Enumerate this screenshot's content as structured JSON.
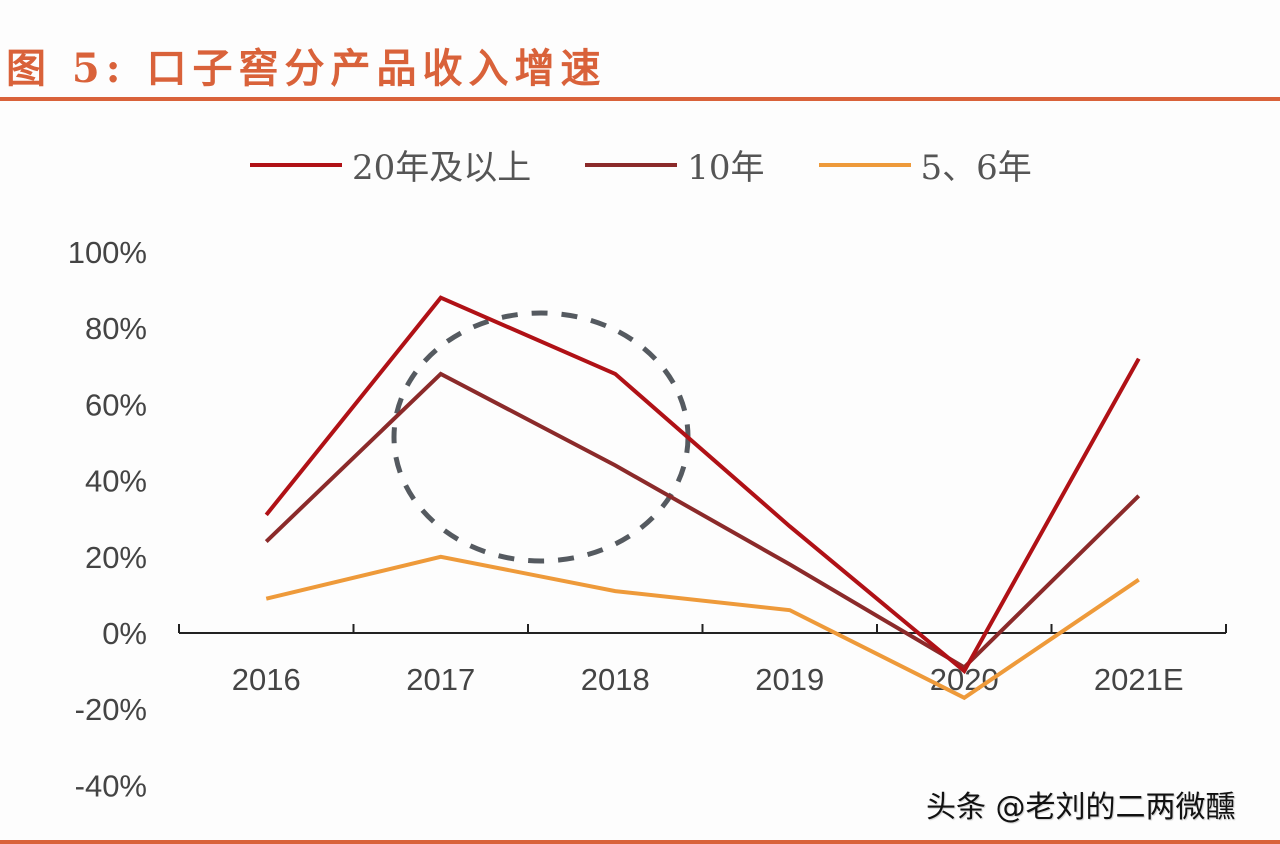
{
  "title": "图 5:  口子窖分产品收入增速",
  "watermark": "头条 @老刘的二两微醺",
  "colors": {
    "accent": "#d9623a",
    "series_20": "#b01116",
    "series_10": "#8b2a2a",
    "series_56": "#ee9a3a",
    "annotation": "#555a60"
  },
  "legend": [
    {
      "label": "20年及以上",
      "color": "#b01116"
    },
    {
      "label": "10年",
      "color": "#8b2a2a"
    },
    {
      "label": "5、6年",
      "color": "#ee9a3a"
    }
  ],
  "chart_data": {
    "type": "line",
    "title": "图 5: 口子窖分产品收入增速",
    "xlabel": "",
    "ylabel": "",
    "categories": [
      "2016",
      "2017",
      "2018",
      "2019",
      "2020",
      "2021E"
    ],
    "series": [
      {
        "name": "20年及以上",
        "values": [
          31,
          88,
          68,
          28,
          -10,
          72
        ]
      },
      {
        "name": "10年",
        "values": [
          24,
          68,
          44,
          18,
          -9,
          36
        ]
      },
      {
        "name": "5、6年",
        "values": [
          9,
          20,
          11,
          6,
          -17,
          14
        ]
      }
    ],
    "yticks": [
      "100%",
      "80%",
      "60%",
      "40%",
      "20%",
      "0%",
      "-20%",
      "-40%"
    ],
    "ylim": [
      -40,
      100
    ],
    "grid": false,
    "legend_position": "top",
    "annotations": [
      "dashed circle highlighting 2017-2018 region"
    ]
  }
}
